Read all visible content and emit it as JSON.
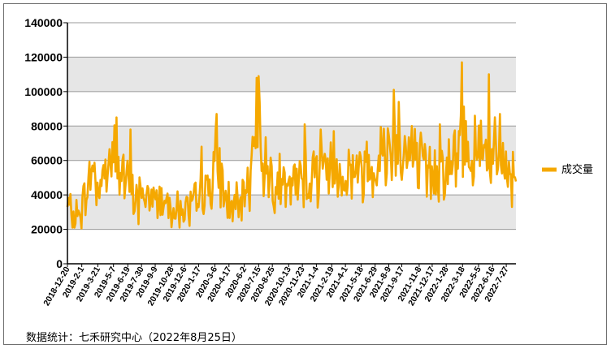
{
  "source_note": "数据统计：七禾研究中心（2022年8月25日）",
  "chart_data": {
    "type": "line",
    "title": "",
    "xlabel": "",
    "ylabel": "",
    "ylim": [
      0,
      140000
    ],
    "yticks": [
      0,
      20000,
      40000,
      60000,
      80000,
      100000,
      120000,
      140000
    ],
    "grid": true,
    "legend_position": "right",
    "x_start": "2018-12-20",
    "x_end": "2022-8-25",
    "x_ticks": [
      "2018-12-20",
      "2019-2-1",
      "2019-3-21",
      "2019-5-7",
      "2019-6-19",
      "2019-7-30",
      "2019-9-9",
      "2019-10-28",
      "2019-12-6",
      "2020-1-17",
      "2020-3-6",
      "2020-4-17",
      "2020-6-2",
      "2020-7-15",
      "2020-8-25",
      "2020-10-13",
      "2020-11-23",
      "2021-1-4",
      "2021-2-19",
      "2021-4-1",
      "2021-5-18",
      "2021-6-29",
      "2021-8-9",
      "2021-9-17",
      "2021-11-8",
      "2021-12-17",
      "2022-1-28",
      "2022-3-18",
      "2022-5-5",
      "2022-6-16",
      "2022-7-27"
    ],
    "series": [
      {
        "name": "成交量",
        "color": "#F5A800",
        "points": [
          [
            "2018-12-20",
            33000
          ],
          [
            "2019-1-10",
            27000
          ],
          [
            "2019-2-1",
            31000
          ],
          [
            "2019-2-20",
            46000
          ],
          [
            "2019-3-5",
            56000
          ],
          [
            "2019-3-21",
            44000
          ],
          [
            "2019-4-10",
            52000
          ],
          [
            "2019-4-25",
            60000
          ],
          [
            "2019-5-7",
            66000
          ],
          [
            "2019-5-20",
            58000
          ],
          [
            "2019-6-5",
            50000
          ],
          [
            "2019-6-19",
            45000
          ],
          [
            "2019-7-5",
            38000
          ],
          [
            "2019-7-15",
            43000
          ],
          [
            "2019-7-30",
            40000
          ],
          [
            "2019-8-20",
            38000
          ],
          [
            "2019-9-9",
            37000
          ],
          [
            "2019-9-25",
            39000
          ],
          [
            "2019-10-28",
            35000
          ],
          [
            "2019-11-15",
            32000
          ],
          [
            "2019-12-6",
            33000
          ],
          [
            "2019-12-25",
            32000
          ],
          [
            "2020-1-17",
            37000
          ],
          [
            "2020-2-10",
            42000
          ],
          [
            "2020-2-25",
            50000
          ],
          [
            "2020-3-6",
            58000
          ],
          [
            "2020-3-20",
            53000
          ],
          [
            "2020-4-1",
            42000
          ],
          [
            "2020-4-17",
            35000
          ],
          [
            "2020-5-5",
            34000
          ],
          [
            "2020-5-20",
            33000
          ],
          [
            "2020-6-2",
            37000
          ],
          [
            "2020-6-20",
            52000
          ],
          [
            "2020-7-1",
            78000
          ],
          [
            "2020-7-15",
            72000
          ],
          [
            "2020-7-30",
            60000
          ],
          [
            "2020-8-10",
            55000
          ],
          [
            "2020-8-25",
            51000
          ],
          [
            "2020-9-10",
            49000
          ],
          [
            "2020-9-25",
            46000
          ],
          [
            "2020-10-13",
            44000
          ],
          [
            "2020-10-30",
            46000
          ],
          [
            "2020-11-10",
            48000
          ],
          [
            "2020-11-23",
            49000
          ],
          [
            "2020-12-10",
            52000
          ],
          [
            "2020-12-25",
            50000
          ],
          [
            "2021-1-4",
            53000
          ],
          [
            "2021-1-20",
            57000
          ],
          [
            "2021-2-5",
            56000
          ],
          [
            "2021-2-19",
            54000
          ],
          [
            "2021-3-10",
            53000
          ],
          [
            "2021-4-1",
            51000
          ],
          [
            "2021-4-20",
            55000
          ],
          [
            "2021-5-5",
            54000
          ],
          [
            "2021-5-18",
            53000
          ],
          [
            "2021-6-5",
            57000
          ],
          [
            "2021-6-20",
            59000
          ],
          [
            "2021-6-29",
            60000
          ],
          [
            "2021-7-20",
            63000
          ],
          [
            "2021-8-9",
            68000
          ],
          [
            "2021-8-25",
            72000
          ],
          [
            "2021-9-10",
            70000
          ],
          [
            "2021-9-17",
            66000
          ],
          [
            "2021-10-10",
            62000
          ],
          [
            "2021-10-25",
            60000
          ],
          [
            "2021-11-8",
            57000
          ],
          [
            "2021-11-25",
            55000
          ],
          [
            "2021-12-17",
            53000
          ],
          [
            "2022-1-5",
            55000
          ],
          [
            "2022-1-28",
            56000
          ],
          [
            "2022-2-15",
            57000
          ],
          [
            "2022-3-1",
            60000
          ],
          [
            "2022-3-18",
            75000
          ],
          [
            "2022-4-5",
            65000
          ],
          [
            "2022-4-20",
            62000
          ],
          [
            "2022-5-5",
            68000
          ],
          [
            "2022-5-20",
            62000
          ],
          [
            "2022-6-5",
            60000
          ],
          [
            "2022-6-16",
            64000
          ],
          [
            "2022-7-1",
            58000
          ],
          [
            "2022-7-15",
            55000
          ],
          [
            "2022-7-27",
            53000
          ],
          [
            "2022-8-10",
            52000
          ],
          [
            "2022-8-25",
            54000
          ]
        ],
        "annotated_peaks": [
          [
            "2019-5-15",
            85000
          ],
          [
            "2019-6-28",
            78000
          ],
          [
            "2020-1-25",
            68000
          ],
          [
            "2020-3-12",
            87000
          ],
          [
            "2020-7-8",
            108000
          ],
          [
            "2020-7-15",
            109000
          ],
          [
            "2020-11-30",
            81000
          ],
          [
            "2021-1-18",
            78000
          ],
          [
            "2021-2-26",
            77000
          ],
          [
            "2021-8-24",
            101000
          ],
          [
            "2021-9-8",
            94000
          ],
          [
            "2021-10-18",
            80000
          ],
          [
            "2022-1-10",
            81000
          ],
          [
            "2022-3-16",
            117000
          ],
          [
            "2022-4-25",
            86000
          ],
          [
            "2022-6-6",
            110000
          ],
          [
            "2022-7-8",
            87000
          ]
        ],
        "annotated_troughs": [
          [
            "2019-1-5",
            21000
          ],
          [
            "2019-7-20",
            23000
          ],
          [
            "2019-11-20",
            21000
          ],
          [
            "2019-12-20",
            22000
          ],
          [
            "2020-5-15",
            27000
          ],
          [
            "2020-10-5",
            33000
          ],
          [
            "2021-4-5",
            40000
          ],
          [
            "2021-11-30",
            39000
          ],
          [
            "2022-8-12",
            33000
          ]
        ]
      }
    ]
  }
}
